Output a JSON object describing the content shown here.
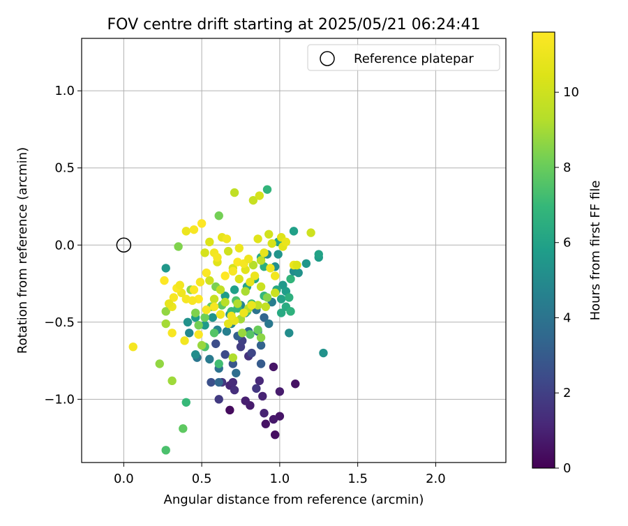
{
  "chart_data": {
    "type": "scatter",
    "title": "FOV centre drift starting at 2025/05/21 06:24:41",
    "xlabel": "Angular distance from reference (arcmin)",
    "ylabel": "Rotation from reference (arcmin)",
    "xlim": [
      -0.27,
      2.45
    ],
    "ylim": [
      -1.41,
      1.34
    ],
    "x_ticks": [
      0.0,
      0.5,
      1.0,
      1.5,
      2.0
    ],
    "y_ticks": [
      1.0,
      0.5,
      0.0,
      -0.5,
      -1.0
    ],
    "x_tick_labels": [
      "0.0",
      "0.5",
      "1.0",
      "1.5",
      "2.0"
    ],
    "y_tick_labels": [
      "1.0",
      "0.5",
      "0.0",
      "−0.5",
      "−1.0"
    ],
    "grid": true,
    "legend": {
      "placement": "top-right",
      "entries": [
        "Reference platepar"
      ]
    },
    "reference_point": {
      "x": 0.0,
      "y": 0.0
    },
    "colorbar": {
      "label": "Hours from first FF file",
      "colormap": "viridis",
      "range": [
        0,
        11.6
      ],
      "ticks": [
        0,
        2,
        4,
        6,
        8,
        10
      ],
      "tick_labels": [
        "0",
        "2",
        "4",
        "6",
        "8",
        "10"
      ]
    },
    "series": [
      {
        "points_x_y_hours": [
          [
            0.68,
            -1.07,
            0.3
          ],
          [
            0.97,
            -1.23,
            0.4
          ],
          [
            0.91,
            -1.16,
            0.5
          ],
          [
            1.0,
            -1.11,
            0.6
          ],
          [
            0.96,
            -1.13,
            0.7
          ],
          [
            0.81,
            -1.04,
            0.8
          ],
          [
            0.78,
            -1.01,
            0.9
          ],
          [
            0.9,
            -1.09,
            1.0
          ],
          [
            1.1,
            -0.9,
            0.5
          ],
          [
            0.96,
            -0.79,
            0.6
          ],
          [
            1.0,
            -0.95,
            0.8
          ],
          [
            0.89,
            -0.98,
            1.0
          ],
          [
            0.87,
            -0.88,
            1.2
          ],
          [
            0.68,
            -0.91,
            1.1
          ],
          [
            0.71,
            -0.94,
            1.4
          ],
          [
            0.63,
            -0.89,
            1.6
          ],
          [
            0.61,
            -1.0,
            1.8
          ],
          [
            0.7,
            -0.89,
            1.3
          ],
          [
            0.85,
            -0.93,
            1.7
          ],
          [
            0.8,
            -0.72,
            1.5
          ],
          [
            0.75,
            -0.66,
            1.9
          ],
          [
            0.82,
            -0.7,
            2.2
          ],
          [
            0.65,
            -0.71,
            2.4
          ],
          [
            0.56,
            -0.89,
            2.6
          ],
          [
            0.7,
            -0.77,
            2.8
          ],
          [
            0.88,
            -0.77,
            3.0
          ],
          [
            0.88,
            -0.65,
            3.3
          ],
          [
            0.76,
            -0.62,
            2.0
          ],
          [
            0.59,
            -0.64,
            2.5
          ],
          [
            0.61,
            -0.89,
            3.5
          ],
          [
            0.72,
            -0.83,
            3.7
          ],
          [
            0.61,
            -0.8,
            3.9
          ],
          [
            0.47,
            -0.73,
            4.1
          ],
          [
            0.55,
            -0.74,
            4.3
          ],
          [
            0.66,
            -0.56,
            4.5
          ],
          [
            0.73,
            -0.59,
            3.2
          ],
          [
            0.8,
            -0.56,
            3.6
          ],
          [
            0.9,
            -0.47,
            3.4
          ],
          [
            0.85,
            -0.42,
            4.0
          ],
          [
            0.93,
            -0.51,
            4.2
          ],
          [
            0.95,
            -0.37,
            4.4
          ],
          [
            0.86,
            -0.56,
            3.8
          ],
          [
            0.69,
            -0.51,
            4.6
          ],
          [
            0.75,
            -0.39,
            4.8
          ],
          [
            0.78,
            -0.44,
            5.0
          ],
          [
            0.68,
            -0.45,
            5.2
          ],
          [
            0.6,
            -0.55,
            4.7
          ],
          [
            0.57,
            -0.47,
            5.4
          ],
          [
            0.52,
            -0.52,
            5.6
          ],
          [
            0.46,
            -0.47,
            5.8
          ],
          [
            0.42,
            -0.57,
            4.9
          ],
          [
            0.46,
            -0.71,
            5.1
          ],
          [
            0.41,
            -0.5,
            5.3
          ],
          [
            0.27,
            -0.15,
            5.5
          ],
          [
            0.65,
            -0.33,
            5.7
          ],
          [
            0.71,
            -0.29,
            5.9
          ],
          [
            0.79,
            -0.27,
            6.1
          ],
          [
            0.84,
            -0.22,
            6.3
          ],
          [
            0.9,
            -0.14,
            6.5
          ],
          [
            0.92,
            -0.06,
            5.0
          ],
          [
            0.97,
            -0.14,
            5.2
          ],
          [
            0.99,
            -0.06,
            5.4
          ],
          [
            1.02,
            -0.26,
            5.6
          ],
          [
            1.04,
            -0.3,
            5.8
          ],
          [
            1.01,
            -0.35,
            6.0
          ],
          [
            0.98,
            -0.29,
            6.2
          ],
          [
            1.04,
            -0.4,
            6.4
          ],
          [
            1.06,
            -0.34,
            6.6
          ],
          [
            1.07,
            -0.22,
            6.8
          ],
          [
            1.09,
            -0.17,
            5.1
          ],
          [
            1.12,
            -0.18,
            5.3
          ],
          [
            1.17,
            -0.12,
            5.5
          ],
          [
            1.25,
            -0.08,
            5.7
          ],
          [
            1.25,
            -0.06,
            6.0
          ],
          [
            1.28,
            -0.7,
            5.3
          ],
          [
            1.06,
            -0.57,
            5.1
          ],
          [
            1.01,
            -0.44,
            6.3
          ],
          [
            1.07,
            -0.43,
            6.7
          ],
          [
            1.09,
            0.09,
            5.9
          ],
          [
            0.99,
            0.02,
            6.1
          ],
          [
            0.88,
            -0.08,
            6.3
          ],
          [
            0.9,
            -0.33,
            6.9
          ],
          [
            0.82,
            -0.38,
            7.1
          ],
          [
            0.79,
            -0.43,
            7.3
          ],
          [
            0.72,
            -0.36,
            7.5
          ],
          [
            0.69,
            -0.43,
            7.0
          ],
          [
            0.61,
            -0.77,
            7.2
          ],
          [
            0.52,
            -0.66,
            7.4
          ],
          [
            0.58,
            -0.57,
            7.6
          ],
          [
            0.63,
            -0.39,
            7.8
          ],
          [
            0.56,
            -0.4,
            8.0
          ],
          [
            0.48,
            -0.52,
            8.2
          ],
          [
            0.46,
            -0.44,
            8.4
          ],
          [
            0.43,
            -0.29,
            8.6
          ],
          [
            0.4,
            -1.02,
            7.0
          ],
          [
            0.27,
            -1.33,
            7.4
          ],
          [
            0.38,
            -1.19,
            7.8
          ],
          [
            0.92,
            0.36,
            6.8
          ],
          [
            0.73,
            -0.41,
            6.9
          ],
          [
            0.81,
            -0.58,
            7.6
          ],
          [
            0.86,
            -0.55,
            8.0
          ],
          [
            0.52,
            -0.47,
            8.1
          ],
          [
            0.59,
            -0.27,
            8.3
          ],
          [
            0.27,
            -0.43,
            8.7
          ],
          [
            0.27,
            -0.51,
            9.0
          ],
          [
            0.31,
            -0.88,
            8.9
          ],
          [
            0.23,
            -0.77,
            8.7
          ],
          [
            0.35,
            -0.01,
            8.4
          ],
          [
            0.61,
            0.19,
            8.2
          ],
          [
            0.5,
            -0.65,
            8.8
          ],
          [
            0.78,
            -0.3,
            9.1
          ],
          [
            0.83,
            -0.13,
            9.3
          ],
          [
            0.88,
            -0.1,
            9.5
          ],
          [
            0.91,
            -0.4,
            9.7
          ],
          [
            0.97,
            -0.31,
            9.9
          ],
          [
            0.92,
            -0.34,
            8.5
          ],
          [
            0.83,
            0.29,
            9.8
          ],
          [
            0.87,
            0.32,
            10.2
          ],
          [
            0.71,
            0.34,
            9.6
          ],
          [
            0.7,
            -0.73,
            9.2
          ],
          [
            0.8,
            -0.41,
            9.4
          ],
          [
            0.86,
            -0.39,
            9.6
          ],
          [
            0.88,
            -0.6,
            8.6
          ],
          [
            0.76,
            -0.57,
            8.8
          ],
          [
            0.75,
            -0.48,
            9.0
          ],
          [
            0.73,
            -0.38,
            9.2
          ],
          [
            0.65,
            -0.37,
            9.4
          ],
          [
            0.62,
            -0.29,
            9.6
          ],
          [
            0.58,
            -0.35,
            9.8
          ],
          [
            0.55,
            -0.23,
            10.0
          ],
          [
            0.52,
            -0.05,
            10.2
          ],
          [
            0.55,
            0.02,
            10.4
          ],
          [
            0.6,
            -0.11,
            10.6
          ],
          [
            0.63,
            0.05,
            10.8
          ],
          [
            0.67,
            -0.04,
            10.0
          ],
          [
            0.7,
            -0.15,
            10.2
          ],
          [
            0.74,
            -0.22,
            10.4
          ],
          [
            0.78,
            -0.16,
            10.6
          ],
          [
            0.81,
            -0.24,
            10.8
          ],
          [
            0.84,
            -0.2,
            11.0
          ],
          [
            0.88,
            -0.27,
            9.9
          ],
          [
            0.93,
            0.07,
            10.1
          ],
          [
            0.95,
            0.01,
            10.3
          ],
          [
            1.01,
            0.05,
            10.5
          ],
          [
            1.02,
            -0.01,
            10.7
          ],
          [
            1.04,
            0.02,
            10.9
          ],
          [
            1.09,
            -0.13,
            11.0
          ],
          [
            1.11,
            -0.13,
            10.4
          ],
          [
            1.2,
            0.08,
            10.0
          ],
          [
            0.86,
            0.04,
            10.6
          ],
          [
            0.9,
            -0.05,
            10.8
          ],
          [
            0.94,
            -0.15,
            11.1
          ],
          [
            0.97,
            -0.2,
            11.2
          ],
          [
            0.82,
            -0.39,
            10.9
          ],
          [
            0.77,
            -0.44,
            11.0
          ],
          [
            0.71,
            -0.49,
            10.8
          ],
          [
            0.69,
            -0.46,
            11.1
          ],
          [
            0.67,
            -0.51,
            10.7
          ],
          [
            0.62,
            -0.45,
            11.2
          ],
          [
            0.58,
            -0.4,
            11.3
          ],
          [
            0.53,
            -0.42,
            11.4
          ],
          [
            0.45,
            -0.29,
            11.5
          ],
          [
            0.4,
            -0.35,
            11.3
          ],
          [
            0.37,
            -0.31,
            11.1
          ],
          [
            0.32,
            -0.34,
            11.4
          ],
          [
            0.34,
            -0.28,
            11.5
          ],
          [
            0.36,
            -0.26,
            11.2
          ],
          [
            0.31,
            -0.4,
            11.0
          ],
          [
            0.29,
            -0.38,
            10.8
          ],
          [
            0.26,
            -0.23,
            11.6
          ],
          [
            0.31,
            -0.57,
            11.4
          ],
          [
            0.39,
            -0.62,
            11.2
          ],
          [
            0.48,
            -0.58,
            11.5
          ],
          [
            0.06,
            -0.66,
            11.3
          ],
          [
            0.4,
            0.09,
            11.0
          ],
          [
            0.45,
            0.1,
            11.4
          ],
          [
            0.5,
            0.14,
            11.6
          ],
          [
            0.53,
            -0.18,
            11.5
          ],
          [
            0.49,
            -0.24,
            11.3
          ],
          [
            0.48,
            -0.35,
            11.6
          ],
          [
            0.44,
            -0.36,
            11.4
          ],
          [
            0.58,
            -0.05,
            11.2
          ],
          [
            0.65,
            -0.2,
            11.6
          ],
          [
            0.7,
            -0.17,
            11.4
          ],
          [
            0.73,
            -0.11,
            11.5
          ],
          [
            0.77,
            -0.12,
            11.3
          ],
          [
            0.8,
            -0.09,
            11.1
          ],
          [
            0.74,
            -0.02,
            11.0
          ],
          [
            0.66,
            0.04,
            11.2
          ],
          [
            0.6,
            -0.08,
            11.3
          ]
        ]
      }
    ]
  }
}
